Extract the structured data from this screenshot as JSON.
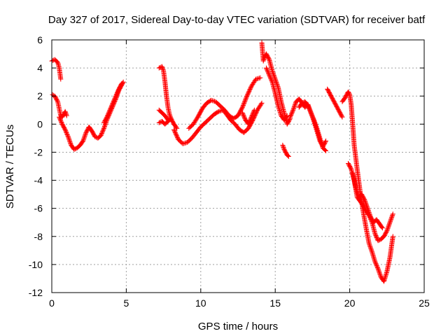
{
  "chart_data": {
    "type": "scatter",
    "title": "Day 327 of 2017, Sidereal Day-to-day VTEC variation (SDTVAR) for receiver batf",
    "xlabel": "GPS time / hours",
    "ylabel": "SDTVAR / TECUs",
    "xlim": [
      0,
      25
    ],
    "ylim": [
      -12,
      6
    ],
    "xticks": [
      0,
      5,
      10,
      15,
      20,
      25
    ],
    "yticks": [
      -12,
      -10,
      -8,
      -6,
      -4,
      -2,
      0,
      2,
      4,
      6
    ],
    "grid": true,
    "marker": "plus",
    "colors": {
      "series": "#ff0000",
      "grid": "#a0a0a0",
      "axis": "#000000"
    },
    "series": [
      {
        "x": [
          0.0,
          0.2,
          0.4,
          0.5,
          0.6
        ],
        "y": [
          4.5,
          4.6,
          4.4,
          4.0,
          3.2
        ]
      },
      {
        "x": [
          0.05,
          0.2,
          0.4,
          0.5,
          0.6,
          0.7,
          0.8,
          0.9,
          1.0
        ],
        "y": [
          2.1,
          2.0,
          1.6,
          1.1,
          0.6,
          0.5,
          0.7,
          0.9,
          0.6
        ]
      },
      {
        "x": [
          0.5,
          0.7,
          0.9,
          1.1,
          1.3,
          1.5,
          1.7,
          1.9,
          2.1,
          2.3,
          2.5,
          2.7,
          2.9,
          3.1,
          3.3,
          3.5,
          3.7,
          3.9,
          4.1,
          4.3,
          4.5,
          4.7,
          4.8
        ],
        "y": [
          0.5,
          0.0,
          -0.4,
          -0.9,
          -1.5,
          -1.8,
          -1.7,
          -1.5,
          -1.2,
          -0.6,
          -0.2,
          -0.5,
          -0.9,
          -1.0,
          -0.8,
          -0.3,
          0.3,
          0.8,
          1.3,
          1.8,
          2.4,
          2.8,
          3.0
        ]
      },
      {
        "x": [
          3.5,
          3.7,
          3.9,
          4.1,
          4.3,
          4.5,
          4.7
        ],
        "y": [
          0.1,
          0.5,
          1.0,
          1.5,
          2.0,
          2.5,
          2.9
        ]
      },
      {
        "x": [
          7.2,
          7.4,
          7.5,
          7.6,
          7.7,
          7.8,
          7.9,
          8.0
        ],
        "y": [
          4.0,
          4.1,
          3.8,
          3.0,
          2.0,
          1.2,
          0.7,
          0.4
        ]
      },
      {
        "x": [
          7.2,
          7.4,
          7.6,
          7.8,
          8.0,
          8.2,
          8.4
        ],
        "y": [
          0.1,
          0.2,
          0.0,
          0.2,
          0.4,
          0.0,
          -0.3
        ]
      },
      {
        "x": [
          7.2,
          7.4,
          7.6,
          7.8
        ],
        "y": [
          1.0,
          0.8,
          0.6,
          0.3
        ]
      },
      {
        "x": [
          8.2,
          8.5,
          8.8,
          9.1,
          9.4,
          9.7,
          10.0,
          10.3,
          10.6,
          10.9,
          11.2,
          11.5,
          11.8,
          12.0,
          12.3,
          12.6,
          12.9,
          13.2,
          13.5,
          13.8,
          14.1
        ],
        "y": [
          -0.4,
          -1.1,
          -1.4,
          -1.3,
          -1.0,
          -0.6,
          -0.2,
          0.1,
          0.4,
          0.7,
          0.9,
          1.0,
          0.6,
          0.3,
          0.0,
          -0.4,
          -0.6,
          -0.3,
          0.3,
          1.0,
          1.5
        ]
      },
      {
        "x": [
          9.2,
          9.5,
          9.8,
          10.1,
          10.4,
          10.7,
          11.0,
          11.3,
          11.6,
          11.9,
          12.2,
          12.5,
          12.8,
          13.1,
          13.4,
          13.7,
          14.0
        ],
        "y": [
          -0.3,
          0.0,
          0.5,
          1.1,
          1.5,
          1.7,
          1.6,
          1.3,
          1.0,
          0.6,
          0.4,
          0.6,
          1.2,
          2.0,
          2.7,
          3.2,
          3.3
        ]
      },
      {
        "x": [
          12.8,
          13.0,
          13.2,
          13.4,
          13.6
        ],
        "y": [
          0.8,
          0.3,
          0.0,
          0.5,
          1.0
        ]
      },
      {
        "x": [
          14.1,
          14.2,
          14.3,
          14.4,
          14.6,
          14.8,
          15.0,
          15.2,
          15.4,
          15.6,
          15.8,
          16.0
        ],
        "y": [
          5.8,
          4.5,
          4.8,
          5.0,
          4.6,
          3.8,
          3.2,
          2.6,
          1.6,
          0.8,
          0.0,
          0.4
        ]
      },
      {
        "x": [
          14.4,
          14.6,
          14.8,
          15.0,
          15.2,
          15.4,
          15.6,
          15.8
        ],
        "y": [
          4.0,
          3.5,
          3.0,
          2.2,
          1.3,
          0.6,
          0.3,
          0.6
        ]
      },
      {
        "x": [
          15.5,
          15.6,
          15.7,
          15.8,
          15.9
        ],
        "y": [
          -1.5,
          -1.8,
          -2.0,
          -2.2,
          -2.3
        ]
      },
      {
        "x": [
          16.0,
          16.2,
          16.4,
          16.6,
          16.8,
          17.0,
          17.2,
          17.4,
          17.6,
          17.8,
          18.0,
          18.2,
          18.4
        ],
        "y": [
          0.5,
          1.0,
          1.6,
          1.8,
          1.5,
          1.2,
          1.4,
          0.8,
          0.2,
          -0.5,
          -1.2,
          -1.6,
          -1.2
        ]
      },
      {
        "x": [
          16.6,
          16.8,
          17.0,
          17.2,
          17.4,
          17.6,
          17.8,
          18.0,
          18.2,
          18.4
        ],
        "y": [
          1.2,
          1.5,
          1.6,
          1.3,
          0.8,
          0.3,
          -0.3,
          -1.0,
          -1.7,
          -1.9
        ]
      },
      {
        "x": [
          18.5,
          18.7,
          18.9,
          19.1,
          19.3,
          19.5
        ],
        "y": [
          2.5,
          2.1,
          1.7,
          1.3,
          0.9,
          0.5
        ]
      },
      {
        "x": [
          19.5,
          19.7,
          19.9,
          20.0,
          20.1,
          20.2,
          20.3,
          20.5,
          20.7,
          20.9,
          21.1,
          21.3,
          21.5,
          21.7,
          21.9,
          22.1,
          22.3,
          22.5,
          22.7,
          22.9
        ],
        "y": [
          1.6,
          1.9,
          2.3,
          2.1,
          1.4,
          0.0,
          -1.5,
          -3.2,
          -4.8,
          -6.2,
          -7.4,
          -8.5,
          -9.1,
          -9.8,
          -10.3,
          -10.9,
          -11.2,
          -10.5,
          -9.5,
          -8.0
        ]
      },
      {
        "x": [
          19.9,
          20.1,
          20.3,
          20.5,
          20.7,
          20.9,
          21.1,
          21.3,
          21.5,
          21.7,
          21.9,
          22.1,
          22.3,
          22.5,
          22.7,
          22.9
        ],
        "y": [
          -2.8,
          -3.2,
          -4.0,
          -5.2,
          -5.5,
          -5.8,
          -6.2,
          -6.5,
          -7.0,
          -7.8,
          -8.3,
          -8.2,
          -8.0,
          -7.6,
          -7.0,
          -6.4
        ]
      },
      {
        "x": [
          20.2,
          20.4,
          20.6,
          20.8,
          21.0,
          21.2,
          21.4,
          21.6,
          21.8,
          22.0,
          22.2
        ],
        "y": [
          -3.5,
          -4.5,
          -5.2,
          -5.0,
          -5.4,
          -6.0,
          -6.6,
          -7.0,
          -6.8,
          -7.1,
          -7.4
        ]
      }
    ]
  }
}
